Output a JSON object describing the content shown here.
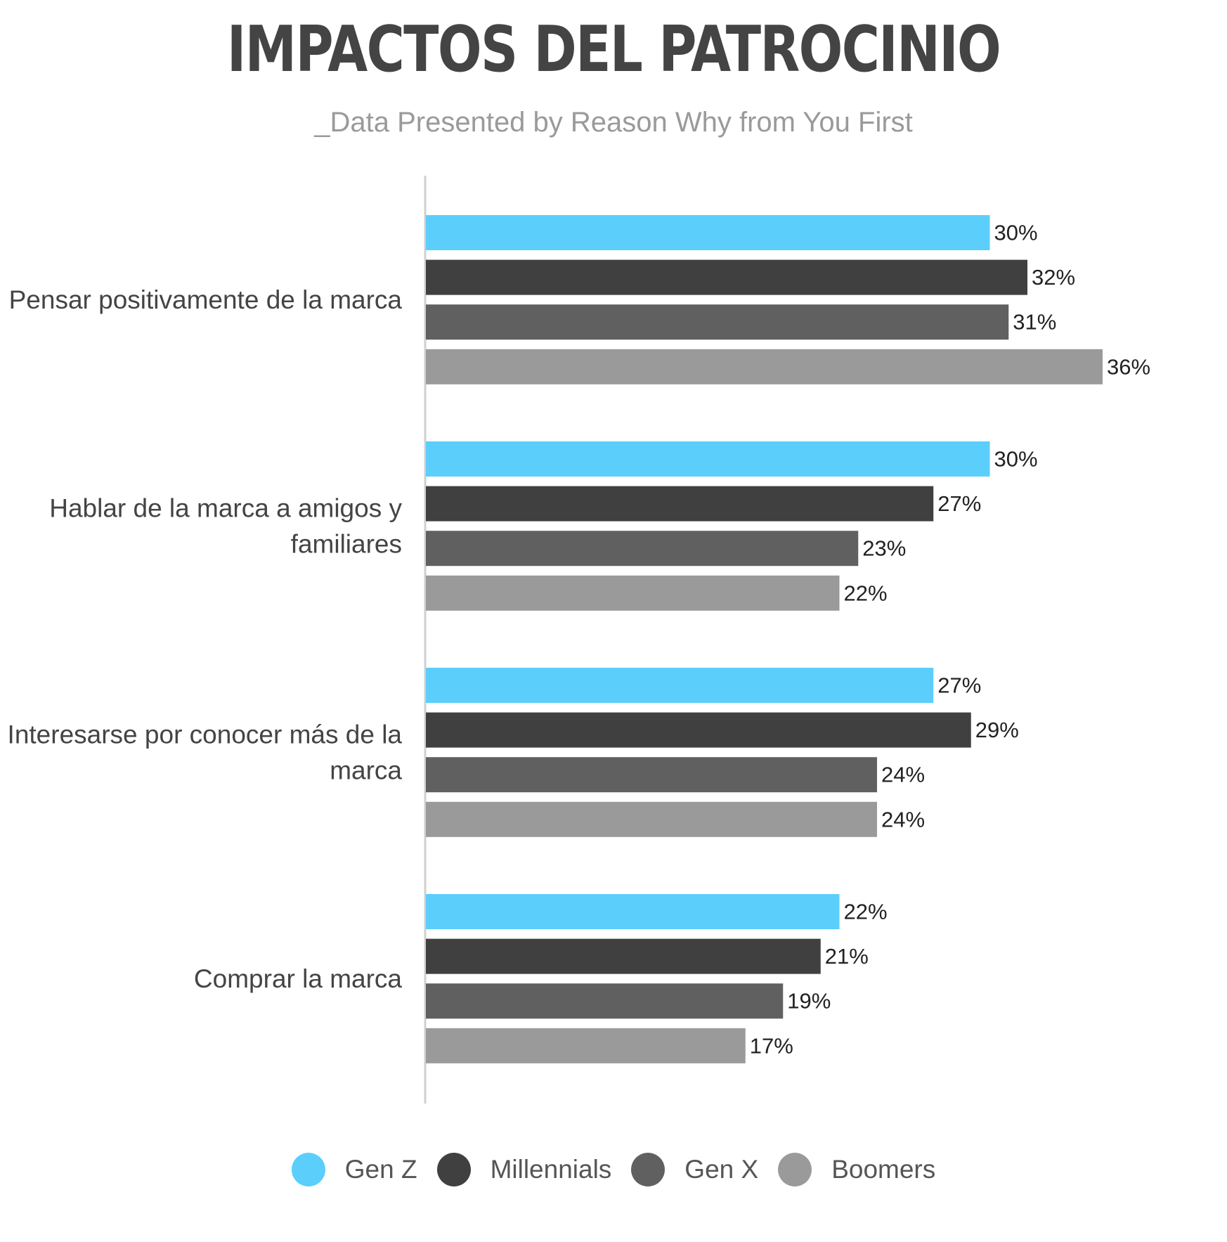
{
  "title": "IMPACTOS DEL PATROCINIO",
  "subtitle": "_Data Presented by Reason Why from You First",
  "chart_data": {
    "type": "bar",
    "orientation": "horizontal",
    "title": "IMPACTOS DEL PATROCINIO",
    "subtitle": "_Data Presented by Reason Why from You First",
    "categories": [
      [
        "Pensar positivamente de la marca"
      ],
      [
        "Hablar de la marca a amigos y",
        "familiares"
      ],
      [
        "Interesarse por conocer más de la",
        "marca"
      ],
      [
        "Comprar la marca"
      ]
    ],
    "series": [
      {
        "name": "Gen Z",
        "color": "#5bcefc",
        "values": [
          30,
          30,
          27,
          22
        ]
      },
      {
        "name": "Millennials",
        "color": "#404040",
        "values": [
          32,
          27,
          29,
          21
        ]
      },
      {
        "name": "Gen X",
        "color": "#606060",
        "values": [
          31,
          23,
          24,
          19
        ]
      },
      {
        "name": "Boomers",
        "color": "#9a9a9a",
        "values": [
          36,
          22,
          24,
          17
        ]
      }
    ],
    "value_suffix": "%",
    "xlim": [
      0,
      36
    ],
    "grid": false,
    "legend_position": "bottom-center"
  }
}
